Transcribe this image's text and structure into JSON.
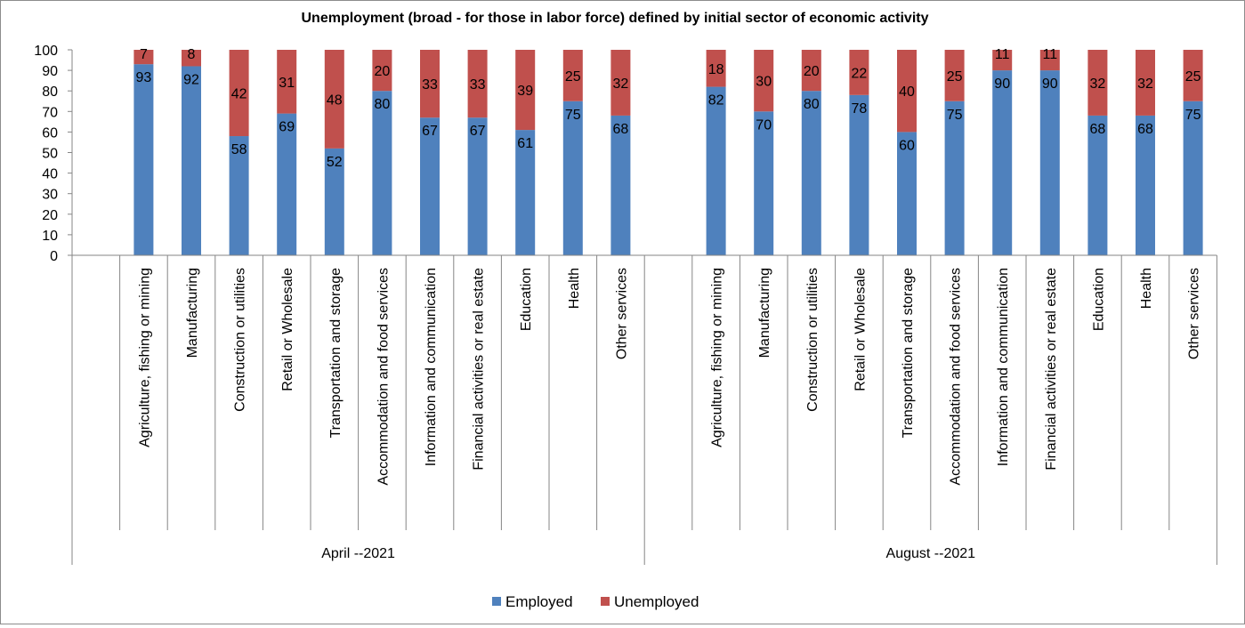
{
  "chart_data": {
    "type": "bar",
    "stacked": true,
    "title": "Unemployment (broad - for those in labor force) defined by initial sector of economic activity",
    "xlabel": "",
    "ylabel": "",
    "ylim": [
      0,
      100
    ],
    "yticks": [
      "0",
      "10",
      "20",
      "30",
      "40",
      "50",
      "60",
      "70",
      "80",
      "90",
      "100"
    ],
    "grid": false,
    "legend_position": "bottom",
    "groups": [
      {
        "name": "April --2021",
        "categories": [
          "Agriculture, fishing or mining",
          "Manufacturing",
          "Construction or utilities",
          "Retail or Wholesale",
          "Transportation and storage",
          "Accommodation and food services",
          "Information and communication",
          "Financial activities or real estate",
          "Education",
          "Health",
          "Other services"
        ],
        "series": [
          {
            "name": "Employed",
            "values": [
              93,
              92,
              58,
              69,
              52,
              80,
              67,
              67,
              61,
              75,
              68
            ]
          },
          {
            "name": "Unemployed",
            "values": [
              7,
              8,
              42,
              31,
              48,
              20,
              33,
              33,
              39,
              25,
              32
            ]
          }
        ]
      },
      {
        "name": "August --2021",
        "categories": [
          "Agriculture, fishing or mining",
          "Manufacturing",
          "Construction or utilities",
          "Retail or Wholesale",
          "Transportation and storage",
          "Accommodation and food services",
          "Information and communication",
          "Financial activities or real estate",
          "Education",
          "Health",
          "Other services"
        ],
        "series": [
          {
            "name": "Employed",
            "values": [
              82,
              70,
              80,
              78,
              60,
              75,
              90,
              90,
              68,
              68,
              75
            ]
          },
          {
            "name": "Unemployed",
            "values": [
              18,
              30,
              20,
              22,
              40,
              25,
              11,
              11,
              32,
              32,
              25
            ]
          }
        ]
      }
    ],
    "colors": {
      "Employed": "#4f81bd",
      "Unemployed": "#c0504d"
    }
  }
}
